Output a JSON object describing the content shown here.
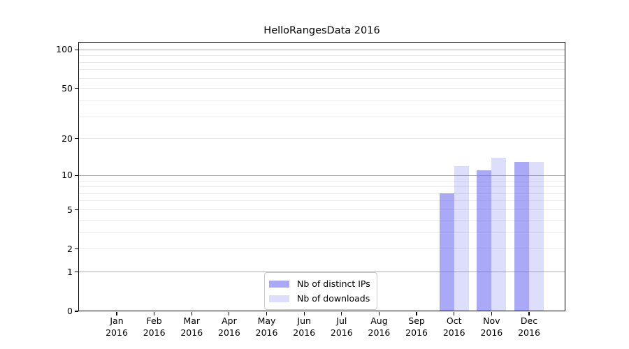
{
  "title": "HelloRangesData 2016",
  "chart_data": {
    "type": "bar",
    "title": "HelloRangesData 2016",
    "categories": [
      {
        "month": "Jan",
        "year": "2016"
      },
      {
        "month": "Feb",
        "year": "2016"
      },
      {
        "month": "Mar",
        "year": "2016"
      },
      {
        "month": "Apr",
        "year": "2016"
      },
      {
        "month": "May",
        "year": "2016"
      },
      {
        "month": "Jun",
        "year": "2016"
      },
      {
        "month": "Jul",
        "year": "2016"
      },
      {
        "month": "Aug",
        "year": "2016"
      },
      {
        "month": "Sep",
        "year": "2016"
      },
      {
        "month": "Oct",
        "year": "2016"
      },
      {
        "month": "Nov",
        "year": "2016"
      },
      {
        "month": "Dec",
        "year": "2016"
      }
    ],
    "series": [
      {
        "name": "Nb of distinct IPs",
        "fill": "rgba(98,98,240,0.55)",
        "values": [
          0,
          0,
          0,
          0,
          0,
          0,
          0,
          0,
          0,
          7,
          11,
          13
        ]
      },
      {
        "name": "Nb of downloads",
        "fill": "rgba(98,98,240,0.22)",
        "values": [
          0,
          0,
          0,
          0,
          0,
          0,
          0,
          0,
          0,
          12,
          14,
          13
        ]
      }
    ],
    "yscale": "log(1+x)",
    "yticks": [
      0,
      1,
      2,
      5,
      10,
      20,
      50,
      100
    ],
    "ylim": [
      0,
      115
    ],
    "xlabel": "",
    "ylabel": "",
    "grid": {
      "major_lines": [
        1,
        10,
        100
      ],
      "minor_lines": [
        2,
        3,
        4,
        5,
        6,
        7,
        8,
        9,
        20,
        30,
        40,
        50,
        60,
        70,
        80,
        90
      ],
      "major_color": "#b0b0b0",
      "minor_color": "#ebebeb"
    },
    "legend": {
      "position": "lower center"
    }
  }
}
